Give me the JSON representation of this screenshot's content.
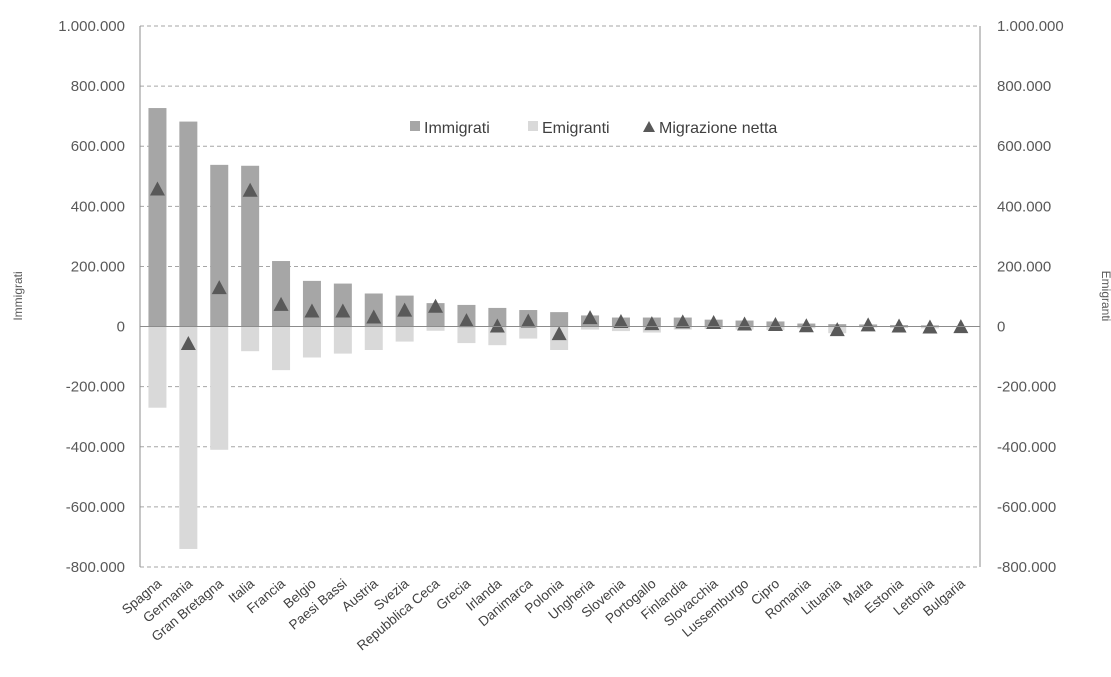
{
  "chart_data": {
    "type": "bar",
    "categories": [
      "Spagna",
      "Germania",
      "Gran Bretagna",
      "Italia",
      "Francia",
      "Belgio",
      "Paesi Bassi",
      "Austria",
      "Svezia",
      "Repubblica Ceca",
      "Grecia",
      "Irlanda",
      "Danimarca",
      "Polonia",
      "Ungheria",
      "Slovenia",
      "Portogallo",
      "Finlandia",
      "Slovacchia",
      "Lussemburgo",
      "Cipro",
      "Romania",
      "Lituania",
      "Malta",
      "Estonia",
      "Lettonia",
      "Bulgaria"
    ],
    "series": [
      {
        "name": "Immigrati",
        "kind": "bar",
        "color": "#a6a6a6",
        "values": [
          727000,
          682000,
          538000,
          535000,
          218000,
          152000,
          143000,
          110000,
          103000,
          78000,
          72000,
          62000,
          55000,
          48000,
          37000,
          30000,
          30000,
          30000,
          23000,
          20000,
          17000,
          10000,
          8000,
          7000,
          5000,
          4000,
          2000
        ]
      },
      {
        "name": "Emigranti",
        "kind": "bar",
        "color": "#d9d9d9",
        "values": [
          -270000,
          -740000,
          -410000,
          -82000,
          -145000,
          -103000,
          -90000,
          -78000,
          -50000,
          -14000,
          -55000,
          -62000,
          -40000,
          -78000,
          -10000,
          -15000,
          -20000,
          -10000,
          -8000,
          -10000,
          -12000,
          -6000,
          -22000,
          -3000,
          -5000,
          -6000,
          -2000
        ]
      },
      {
        "name": "Migrazione netta",
        "kind": "marker",
        "color": "#595959",
        "values": [
          456000,
          -58000,
          128000,
          452000,
          72000,
          50000,
          50000,
          30000,
          53000,
          66000,
          18000,
          0,
          17000,
          -25000,
          28000,
          15000,
          8000,
          14000,
          12000,
          7000,
          5000,
          1000,
          -12000,
          4000,
          0,
          -3000,
          -2000
        ]
      }
    ],
    "y_left": {
      "label": "Immigrati",
      "min": -800000,
      "max": 1000000,
      "step": 200000,
      "tick_labels": [
        "-800.000",
        "-600.000",
        "-400.000",
        "-200.000",
        "0",
        "200.000",
        "400.000",
        "600.000",
        "800.000",
        "1.000.000"
      ]
    },
    "y_right": {
      "label": "Emigranti",
      "min": -800000,
      "max": 1000000,
      "step": 200000,
      "tick_labels": [
        "-800.000",
        "-600.000",
        "-400.000",
        "-200.000",
        "0",
        "200.000",
        "400.000",
        "600.000",
        "800.000",
        "1.000.000"
      ]
    },
    "grid": true,
    "legend_position": "top-center"
  }
}
